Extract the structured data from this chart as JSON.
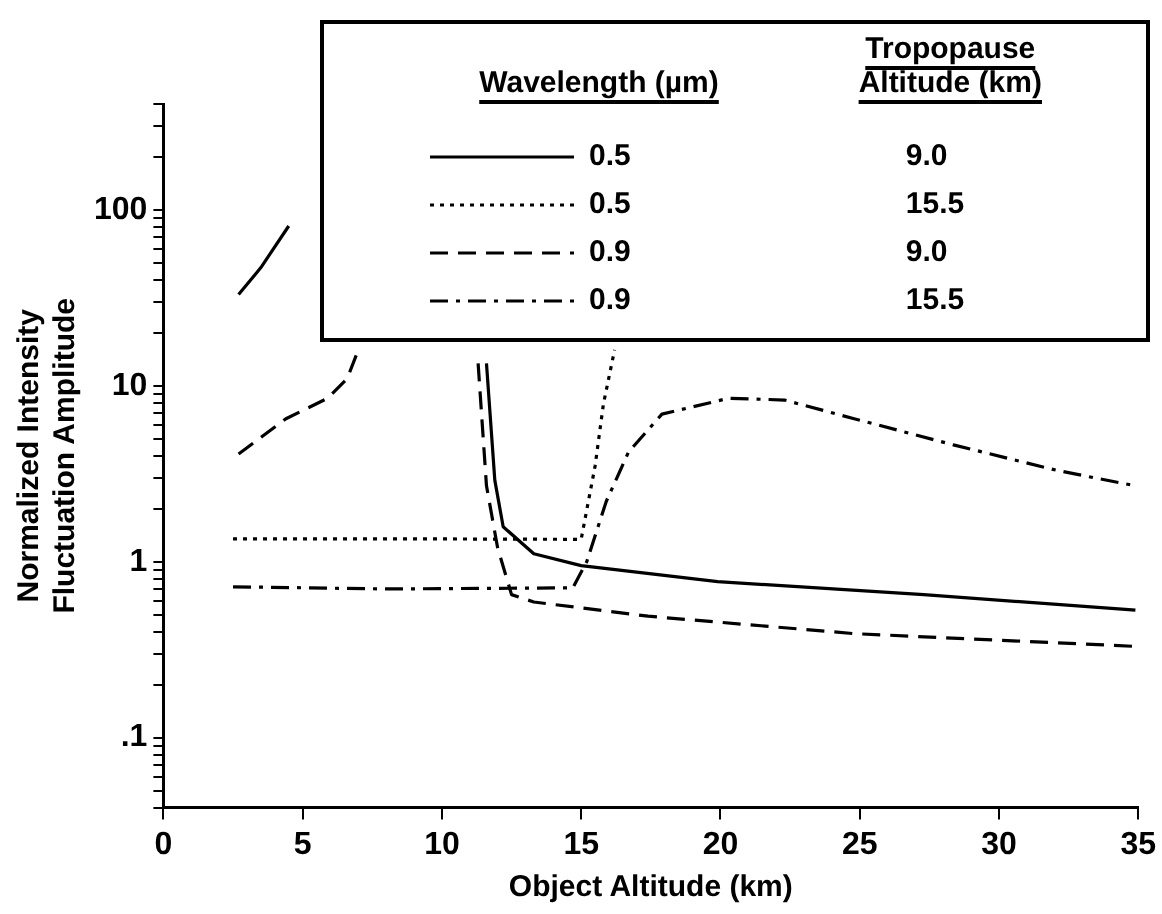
{
  "chart_data": {
    "type": "line",
    "xlabel": "Object Altitude (km)",
    "ylabel": "Normalized Intensity\nFluctuation Amplitude",
    "annotations": [
      "Wavelength (µm)",
      "Tropopause Altitude (km)"
    ],
    "legend": "top right",
    "log": "y",
    "grid": false,
    "marker": "none",
    "xlim": [
      0,
      35
    ],
    "xticks": [
      0,
      5,
      10,
      15,
      20,
      25,
      30,
      35
    ],
    "ylim": [
      0.04,
      400
    ],
    "yticks": [
      {
        "value": 0.04,
        "label": null
      },
      {
        "value": 0.05,
        "label": null
      },
      {
        "value": 0.06,
        "label": null
      },
      {
        "value": 0.07,
        "label": null
      },
      {
        "value": 0.08,
        "label": null
      },
      {
        "value": 0.09,
        "label": null
      },
      {
        "value": 0.1,
        "label": ".1"
      },
      {
        "value": 0.2,
        "label": null
      },
      {
        "value": 0.3,
        "label": null
      },
      {
        "value": 0.4,
        "label": null
      },
      {
        "value": 0.5,
        "label": null
      },
      {
        "value": 0.6,
        "label": null
      },
      {
        "value": 0.7,
        "label": null
      },
      {
        "value": 0.8,
        "label": null
      },
      {
        "value": 0.9,
        "label": null
      },
      1,
      {
        "value": 2,
        "label": null
      },
      {
        "value": 3,
        "label": null
      },
      {
        "value": 4,
        "label": null
      },
      {
        "value": 5,
        "label": null
      },
      {
        "value": 6,
        "label": null
      },
      {
        "value": 7,
        "label": null
      },
      {
        "value": 8,
        "label": null
      },
      {
        "value": 9,
        "label": null
      },
      10,
      {
        "value": 20,
        "label": null
      },
      {
        "value": 30,
        "label": null
      },
      {
        "value": 40,
        "label": null
      },
      {
        "value": 50,
        "label": null
      },
      {
        "value": 60,
        "label": null
      },
      {
        "value": 70,
        "label": null
      },
      {
        "value": 80,
        "label": null
      },
      {
        "value": 90,
        "label": null
      },
      100,
      {
        "value": 200,
        "label": null
      },
      {
        "value": 300,
        "label": null
      },
      {
        "value": 400,
        "label": null
      }
    ],
    "series": [
      {
        "name": "0.5 9.0",
        "color": "#000000",
        "line_style": "solid",
        "x": [
          2.7,
          3.5,
          4.5,
          8,
          11.6,
          11.9,
          12.2,
          13.3,
          15.0,
          19.9,
          27.3,
          34.9
        ],
        "values": [
          33,
          47,
          81,
          null,
          13.4,
          2.9,
          1.58,
          1.11,
          0.95,
          0.77,
          0.65,
          0.53
        ]
      },
      {
        "name": "0.5 15.5",
        "color": "#000000",
        "line_style": "dotted",
        "x": [
          2.5,
          8,
          15.0,
          15.5,
          15.8,
          16.1,
          16.2
        ],
        "values": [
          1.35,
          1.35,
          1.34,
          3.5,
          7.9,
          13.4,
          16
        ]
      },
      {
        "name": "0.9 9.0",
        "color": "#000000",
        "line_style": "dashed",
        "x": [
          2.7,
          4.4,
          5.9,
          6.6,
          7.0,
          9,
          11.3,
          11.6,
          12.0,
          12.5,
          13.3,
          17.4,
          24.8,
          34.9
        ],
        "values": [
          4.1,
          6.5,
          8.5,
          11,
          16,
          null,
          13.4,
          2.7,
          1.2,
          0.65,
          0.59,
          0.49,
          0.39,
          0.33
        ]
      },
      {
        "name": "0.9 15.5",
        "color": "#000000",
        "line_style": "dashdot",
        "x": [
          2.5,
          8,
          14.7,
          15.2,
          15.9,
          16.7,
          17.9,
          20.3,
          22.3,
          24.8,
          28.4,
          32.1,
          34.9
        ],
        "values": [
          0.72,
          0.7,
          0.71,
          1.0,
          2.2,
          4.2,
          6.9,
          8.5,
          8.3,
          6.5,
          4.6,
          3.3,
          2.7
        ]
      }
    ]
  }
}
